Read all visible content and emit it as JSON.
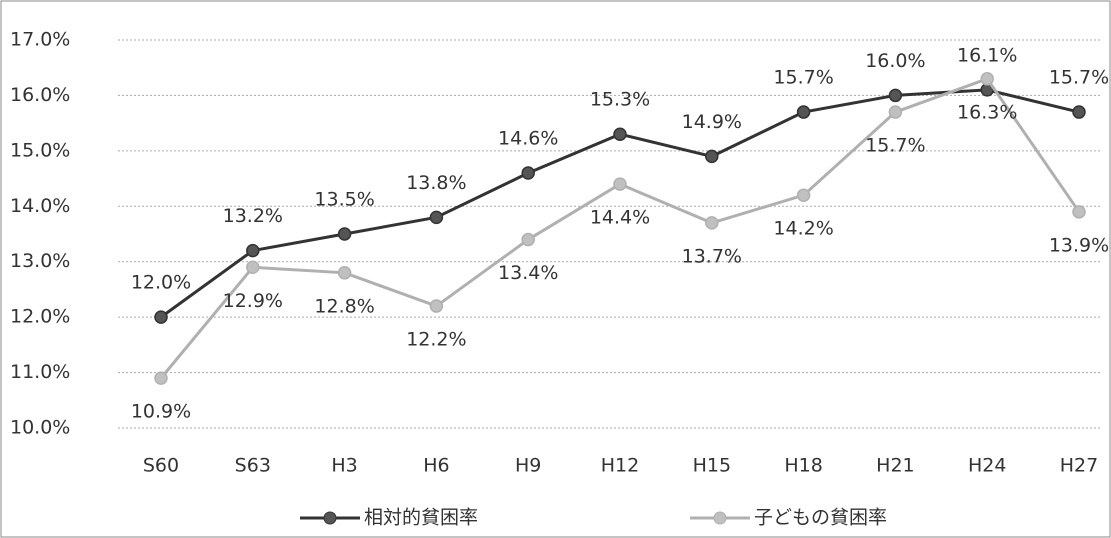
{
  "chart_data": {
    "type": "line",
    "categories": [
      "S60",
      "S63",
      "H3",
      "H6",
      "H9",
      "H12",
      "H15",
      "H18",
      "H21",
      "H24",
      "H27"
    ],
    "series": [
      {
        "name": "相対的貧困率",
        "color": "#333333",
        "marker_color": "#555555",
        "values": [
          12.0,
          13.2,
          13.5,
          13.8,
          14.6,
          15.3,
          14.9,
          15.7,
          16.0,
          16.1,
          15.7
        ],
        "value_labels": [
          "12.0%",
          "13.2%",
          "13.5%",
          "13.8%",
          "14.6%",
          "15.3%",
          "14.9%",
          "15.7%",
          "16.0%",
          "16.1%",
          "15.7%"
        ]
      },
      {
        "name": "子どもの貧困率",
        "color": "#b0b0b0",
        "marker_color": "#c0c0c0",
        "values": [
          10.9,
          12.9,
          12.8,
          12.2,
          13.4,
          14.4,
          13.7,
          14.2,
          15.7,
          16.3,
          13.9
        ],
        "value_labels": [
          "10.9%",
          "12.9%",
          "12.8%",
          "12.2%",
          "13.4%",
          "14.4%",
          "13.7%",
          "14.2%",
          "15.7%",
          "16.3%",
          "13.9%"
        ]
      }
    ],
    "ylim": [
      10,
      17
    ],
    "yticks": [
      {
        "value": 10,
        "label": "10.0%"
      },
      {
        "value": 11,
        "label": "11.0%"
      },
      {
        "value": 12,
        "label": "12.0%"
      },
      {
        "value": 13,
        "label": "13.0%"
      },
      {
        "value": 14,
        "label": "14.0%"
      },
      {
        "value": 15,
        "label": "15.0%"
      },
      {
        "value": 16,
        "label": "16.0%"
      },
      {
        "value": 17,
        "label": "17.0%"
      }
    ],
    "grid": true,
    "legend": "bottom"
  }
}
